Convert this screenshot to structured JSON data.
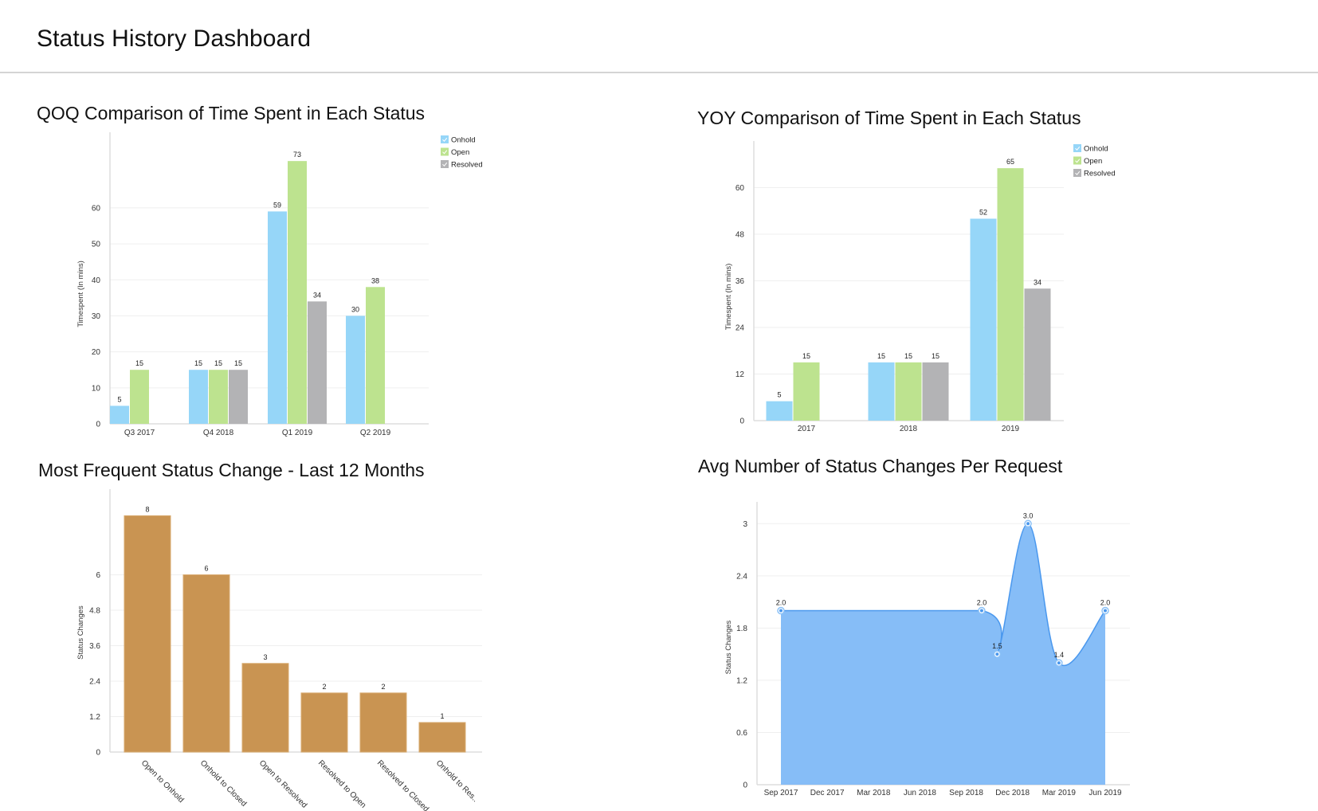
{
  "header": {
    "title": "Status History Dashboard"
  },
  "colors": {
    "onhold": "#96d6f8",
    "open": "#bde38f",
    "resolved": "#b3b3b5",
    "bar_brown": "#c99452",
    "area_fill": "#7fb9f7",
    "area_line": "#4a98ee",
    "grid": "#efefef",
    "axis": "#dddddd"
  },
  "chart_data": [
    {
      "id": "qoq",
      "type": "bar",
      "title": "QOQ Comparison of Time Spent in Each Status",
      "xlabel": "",
      "ylabel": "Timespent (In mins)",
      "categories": [
        "Q3 2017",
        "Q4 2018",
        "Q1 2019",
        "Q2 2019"
      ],
      "series": [
        {
          "name": "Onhold",
          "color_key": "onhold",
          "values": [
            5,
            15,
            59,
            30
          ]
        },
        {
          "name": "Open",
          "color_key": "open",
          "values": [
            15,
            15,
            73,
            38
          ]
        },
        {
          "name": "Resolved",
          "color_key": "resolved",
          "values": [
            null,
            15,
            34,
            null
          ]
        }
      ],
      "yticks": [
        0,
        10,
        20,
        30,
        40,
        50,
        60
      ],
      "ylim": [
        0,
        81
      ],
      "grid": true,
      "legend": "top-right"
    },
    {
      "id": "yoy",
      "type": "bar",
      "title": "YOY Comparison of Time Spent in Each Status",
      "xlabel": "",
      "ylabel": "Timespent (In mins)",
      "categories": [
        "2017",
        "2018",
        "2019"
      ],
      "series": [
        {
          "name": "Onhold",
          "color_key": "onhold",
          "values": [
            5,
            15,
            52
          ]
        },
        {
          "name": "Open",
          "color_key": "open",
          "values": [
            15,
            15,
            65
          ]
        },
        {
          "name": "Resolved",
          "color_key": "resolved",
          "values": [
            null,
            15,
            34
          ]
        }
      ],
      "yticks": [
        0,
        12,
        24,
        36,
        48,
        60
      ],
      "ylim": [
        0,
        72
      ],
      "grid": true,
      "legend": "top-right"
    },
    {
      "id": "frequent",
      "type": "bar",
      "title": "Most Frequent Status Change - Last 12 Months",
      "xlabel": "",
      "ylabel": "Status Changes",
      "categories": [
        "Open to Onhold",
        "Onhold to Closed",
        "Open to Resolved",
        "Resolved to Open",
        "Resolved to Closed",
        "Onhold to Res.."
      ],
      "values": [
        8,
        6,
        3,
        2,
        2,
        1
      ],
      "yticks": [
        "0",
        "1.2",
        "2.4",
        "3.6",
        "4.8",
        "6"
      ],
      "ylim": [
        0,
        8.9
      ],
      "grid": true,
      "legend": "none"
    },
    {
      "id": "avg",
      "type": "area",
      "title": "Avg Number of Status Changes Per Request",
      "xlabel": "",
      "ylabel": "Status Changes",
      "x_ticks": [
        "Sep 2017",
        "Dec 2017",
        "Mar 2018",
        "Jun 2018",
        "Sep 2018",
        "Dec 2018",
        "Mar 2019",
        "Jun 2019"
      ],
      "points": [
        {
          "x": "Sep 2017",
          "x_month_index": 0,
          "y": 2.0,
          "label": "2.0"
        },
        {
          "x": "Oct 2018",
          "x_month_index": 13,
          "y": 2.0,
          "label": "2.0"
        },
        {
          "x": "Nov 2018",
          "x_month_index": 14,
          "y": 1.5,
          "label": "1.5"
        },
        {
          "x": "Jan 2019",
          "x_month_index": 16,
          "y": 3.0,
          "label": "3.0"
        },
        {
          "x": "Mar 2019",
          "x_month_index": 18,
          "y": 1.4,
          "label": "1.4"
        },
        {
          "x": "Jun 2019",
          "x_month_index": 21,
          "y": 2.0,
          "label": "2.0"
        }
      ],
      "yticks": [
        "0",
        "0.6",
        "1.2",
        "1.8",
        "2.4",
        "3"
      ],
      "ylim": [
        0,
        3.25
      ],
      "grid": true,
      "legend": "none"
    }
  ]
}
